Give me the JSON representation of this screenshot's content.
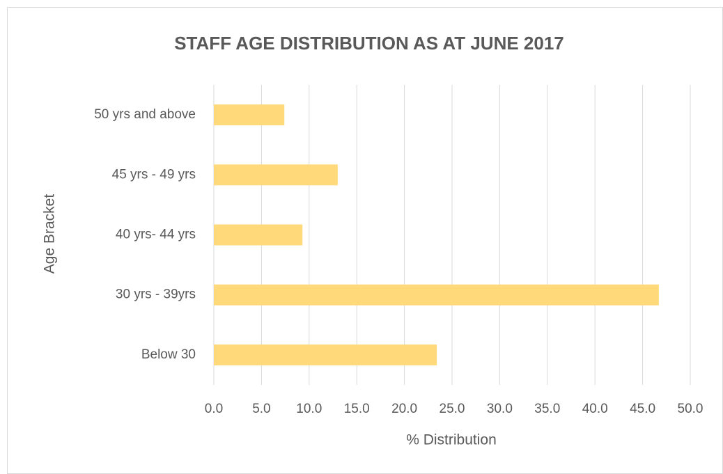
{
  "chart_data": {
    "type": "barh",
    "title": "STAFF AGE DISTRIBUTION AS AT JUNE 2017",
    "x_label": "% Distribution",
    "y_label": "Age Bracket",
    "categories": [
      "50 yrs and above",
      "45 yrs - 49 yrs",
      "40 yrs- 44 yrs",
      "30 yrs - 39yrs",
      "Below 30"
    ],
    "values": [
      7.4,
      13.0,
      9.3,
      46.7,
      23.4
    ],
    "color": "#ffd97a",
    "xlim": [
      0,
      50
    ],
    "xticks": [
      {
        "value": 0,
        "label": "0.0"
      },
      {
        "value": 5,
        "label": "5.0"
      },
      {
        "value": 10,
        "label": "10.0"
      },
      {
        "value": 15,
        "label": "15.0"
      },
      {
        "value": 20,
        "label": "20.0"
      },
      {
        "value": 25,
        "label": "25.0"
      },
      {
        "value": 30,
        "label": "30.0"
      },
      {
        "value": 35,
        "label": "35.0"
      },
      {
        "value": 40,
        "label": "40.0"
      },
      {
        "value": 45,
        "label": "45.0"
      },
      {
        "value": 50,
        "label": "50.0"
      }
    ],
    "grid": true
  }
}
